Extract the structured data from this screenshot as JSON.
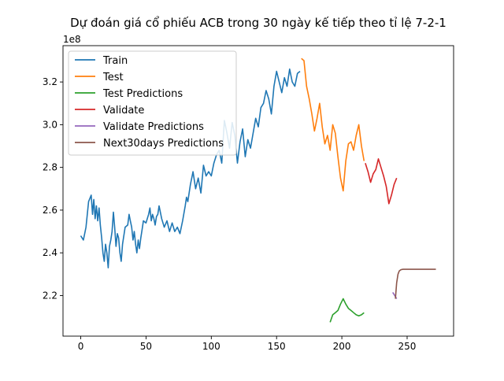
{
  "chart_data": {
    "type": "line",
    "title": "Dự đoán giá cổ phiếu ACB trong 30 ngày kế tiếp theo tỉ lệ 7-2-1",
    "xlabel": "",
    "ylabel": "",
    "y_offset_label": "1e8",
    "xlim": [
      -13.6,
      285.6
    ],
    "ylim": [
      201000000.0,
      337000000.0
    ],
    "xticks": [
      0,
      50,
      100,
      150,
      200,
      250
    ],
    "yticks": [
      220000000,
      240000000,
      260000000,
      280000000,
      300000000,
      320000000
    ],
    "xtick_labels": [
      "0",
      "50",
      "100",
      "150",
      "200",
      "250"
    ],
    "ytick_labels": [
      "2.2",
      "2.4",
      "2.6",
      "2.8",
      "3.0",
      "3.2"
    ],
    "grid": false,
    "legend_position": "upper-left",
    "series": [
      {
        "name": "Train",
        "color": "#1f77b4",
        "x": [
          0,
          2,
          4,
          6,
          8,
          9,
          10,
          11,
          12,
          13,
          14,
          15,
          16,
          17,
          18,
          19,
          20,
          21,
          22,
          23,
          24,
          25,
          26,
          27,
          28,
          29,
          30,
          31,
          32,
          34,
          36,
          37,
          38,
          39,
          40,
          41,
          42,
          43,
          44,
          45,
          46,
          47,
          48,
          50,
          52,
          53,
          54,
          55,
          56,
          57,
          58,
          59,
          60,
          62,
          64,
          66,
          68,
          70,
          72,
          74,
          76,
          78,
          80,
          81,
          82,
          84,
          86,
          88,
          90,
          92,
          94,
          96,
          98,
          100,
          102,
          104,
          106,
          108,
          110,
          112,
          114,
          116,
          118,
          120,
          122,
          124,
          126,
          128,
          130,
          132,
          134,
          136,
          138,
          140,
          142,
          144,
          146,
          148,
          150,
          152,
          154,
          156,
          158,
          160,
          162,
          164,
          166,
          168
        ],
        "y": [
          248000000,
          246000000,
          252000000,
          264000000,
          267000000,
          258000000,
          265000000,
          256000000,
          262000000,
          255000000,
          261000000,
          253000000,
          247000000,
          240000000,
          236000000,
          244000000,
          240000000,
          233000000,
          243000000,
          246000000,
          250000000,
          259000000,
          252000000,
          243000000,
          249000000,
          247000000,
          240000000,
          236000000,
          244000000,
          252000000,
          253000000,
          258000000,
          255000000,
          252000000,
          246000000,
          250000000,
          244000000,
          240000000,
          246000000,
          242000000,
          247000000,
          251000000,
          255000000,
          254000000,
          258000000,
          261000000,
          255000000,
          258000000,
          256000000,
          253000000,
          257000000,
          258000000,
          262000000,
          256000000,
          252000000,
          255000000,
          250000000,
          254000000,
          250000000,
          252000000,
          249000000,
          255000000,
          262000000,
          266000000,
          264000000,
          272000000,
          278000000,
          270000000,
          275000000,
          268000000,
          281000000,
          276000000,
          278000000,
          276000000,
          282000000,
          286000000,
          288000000,
          282000000,
          302000000,
          296000000,
          289000000,
          301000000,
          295000000,
          282000000,
          292000000,
          298000000,
          285000000,
          293000000,
          289000000,
          296000000,
          303000000,
          299000000,
          308000000,
          310000000,
          316000000,
          312000000,
          305000000,
          318000000,
          325000000,
          320000000,
          315000000,
          322000000,
          318000000,
          326000000,
          320000000,
          318000000,
          324000000,
          325000000
        ]
      },
      {
        "name": "Test",
        "color": "#ff7f0e",
        "x": [
          169,
          171,
          173,
          175,
          177,
          179,
          181,
          183,
          185,
          187,
          189,
          191,
          193,
          195,
          197,
          199,
          201,
          203,
          205,
          207,
          209,
          211,
          213,
          215,
          217
        ],
        "y": [
          331000000,
          330000000,
          318000000,
          312000000,
          305000000,
          297000000,
          303000000,
          310000000,
          299000000,
          291000000,
          295000000,
          288000000,
          300000000,
          296000000,
          285000000,
          275000000,
          269000000,
          283000000,
          291000000,
          292000000,
          288000000,
          295000000,
          300000000,
          290000000,
          283000000
        ]
      },
      {
        "name": "Test Predictions",
        "color": "#2ca02c",
        "x": [
          191,
          193,
          195,
          197,
          199,
          201,
          203,
          205,
          207,
          209,
          211,
          213,
          215,
          217
        ],
        "y": [
          207500000,
          211000000,
          212000000,
          213000000,
          216000000,
          218500000,
          216000000,
          214000000,
          213000000,
          212000000,
          211000000,
          210500000,
          211000000,
          212000000
        ]
      },
      {
        "name": "Validate",
        "color": "#d62728",
        "x": [
          218,
          220,
          222,
          224,
          226,
          228,
          230,
          232,
          234,
          236,
          238,
          240,
          242
        ],
        "y": [
          282000000,
          278000000,
          273000000,
          277000000,
          279000000,
          284000000,
          280000000,
          276000000,
          271000000,
          263000000,
          267000000,
          272000000,
          275000000
        ]
      },
      {
        "name": "Validate Predictions",
        "color": "#9467bd",
        "x": [
          239,
          240,
          241,
          242
        ],
        "y": [
          221500000,
          220500000,
          219500000,
          218500000
        ]
      },
      {
        "name": "Next30days Predictions",
        "color": "#8c564b",
        "x": [
          241,
          242,
          243,
          244,
          245,
          246,
          247,
          248,
          250,
          255,
          260,
          265,
          272
        ],
        "y": [
          218500000,
          226000000,
          230000000,
          231500000,
          232000000,
          232200000,
          232300000,
          232300000,
          232300000,
          232300000,
          232300000,
          232300000,
          232300000
        ]
      }
    ]
  }
}
